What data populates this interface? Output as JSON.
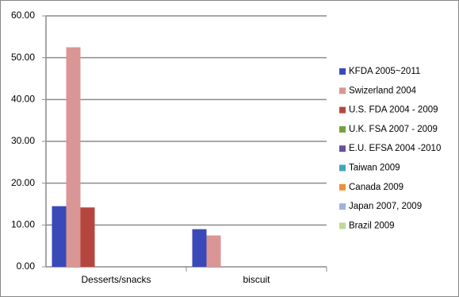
{
  "chart_data": {
    "type": "bar",
    "categories": [
      "Desserts/snacks",
      "biscuit"
    ],
    "series": [
      {
        "name": "KFDA 2005~2011",
        "color": "#3a49b8",
        "values": [
          14.5,
          9.0
        ]
      },
      {
        "name": "Swizerland 2004",
        "color": "#d99694",
        "values": [
          52.5,
          7.5
        ]
      },
      {
        "name": "U.S. FDA 2004 - 2009",
        "color": "#b5463f",
        "values": [
          14.2,
          null
        ]
      },
      {
        "name": "U.K. FSA 2007 - 2009",
        "color": "#77a03d",
        "values": [
          null,
          null
        ]
      },
      {
        "name": "E.U. EFSA 2004 -2010",
        "color": "#6a4f9a",
        "values": [
          null,
          null
        ]
      },
      {
        "name": "Taiwan 2009",
        "color": "#3fa7b9",
        "values": [
          null,
          null
        ]
      },
      {
        "name": "Canada 2009",
        "color": "#f08f3a",
        "values": [
          null,
          null
        ]
      },
      {
        "name": "Japan 2007, 2009",
        "color": "#9eb3dc",
        "values": [
          null,
          null
        ]
      },
      {
        "name": "Brazil 2009",
        "color": "#c3d69b",
        "values": [
          null,
          null
        ]
      }
    ],
    "ylim": [
      0,
      60
    ],
    "yticks": [
      {
        "value": 0,
        "label": "0.00"
      },
      {
        "value": 10,
        "label": "10.00"
      },
      {
        "value": 20,
        "label": "20.00"
      },
      {
        "value": 30,
        "label": "30.00"
      },
      {
        "value": 40,
        "label": "40.00"
      },
      {
        "value": 50,
        "label": "50.00"
      },
      {
        "value": 60,
        "label": "60.00"
      }
    ],
    "grid": true,
    "legend": "right"
  }
}
